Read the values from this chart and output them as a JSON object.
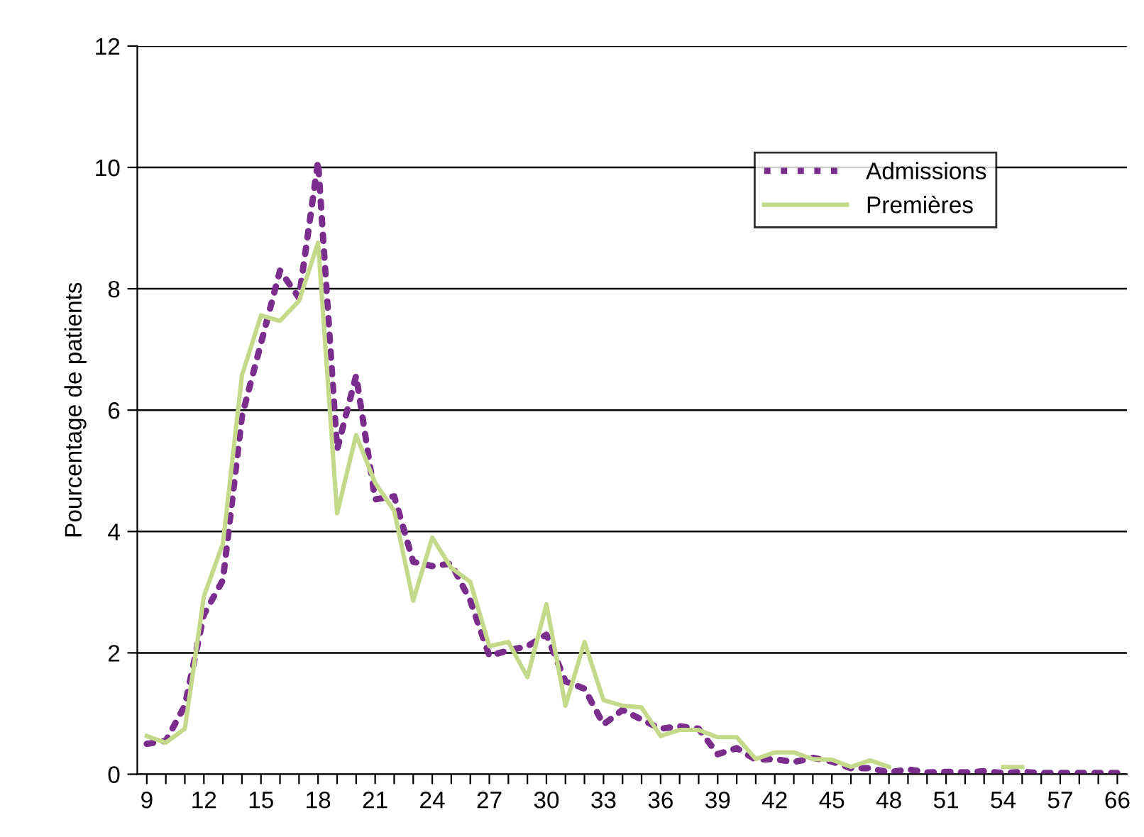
{
  "chart_data": {
    "type": "line",
    "ylabel": "Pourcentage de patients",
    "categories": [
      "9",
      null,
      null,
      "12",
      null,
      null,
      "15",
      null,
      null,
      "18",
      null,
      null,
      "21",
      null,
      null,
      "24",
      null,
      null,
      "27",
      null,
      null,
      "30",
      null,
      null,
      "33",
      null,
      null,
      "36",
      null,
      null,
      "39",
      null,
      null,
      "42",
      null,
      null,
      "45",
      null,
      null,
      "48",
      null,
      null,
      "51",
      null,
      null,
      "54",
      null,
      null,
      "57",
      null,
      null,
      "66"
    ],
    "series": [
      {
        "name": "Admissions",
        "color": "#7b2d8e",
        "line_style": "dotted",
        "values": [
          0.5,
          0.55,
          1.13,
          2.63,
          3.2,
          5.9,
          7.1,
          8.3,
          7.85,
          10.1,
          5.35,
          6.57,
          4.53,
          4.58,
          3.5,
          3.43,
          3.47,
          2.86,
          1.95,
          2.04,
          2.11,
          2.3,
          1.53,
          1.41,
          0.82,
          1.06,
          0.9,
          0.75,
          0.79,
          0.75,
          0.33,
          0.43,
          0.24,
          0.25,
          0.2,
          0.27,
          0.21,
          0.1,
          0.1,
          0.03,
          0.08,
          0.03,
          0.04,
          0.03,
          0.05,
          0.02,
          0.04,
          0.02,
          0.02,
          0.02,
          0.02,
          0.02
        ]
      },
      {
        "name": "Premières",
        "color": "#c5d98a",
        "line_style": "solid",
        "values": [
          0.63,
          0.52,
          0.75,
          2.93,
          3.8,
          6.57,
          7.56,
          7.47,
          7.8,
          8.76,
          4.3,
          5.59,
          4.8,
          4.34,
          2.86,
          3.9,
          3.4,
          3.17,
          2.11,
          2.18,
          1.6,
          2.8,
          1.13,
          2.18,
          1.22,
          1.13,
          1.1,
          0.63,
          0.73,
          0.73,
          0.61,
          0.61,
          0.25,
          0.36,
          0.36,
          0.25,
          0.24,
          0.12,
          0.23,
          0.12,
          null,
          null,
          null,
          null,
          null,
          0.12,
          0.12,
          null,
          null,
          null,
          null,
          null
        ]
      }
    ],
    "ylim": [
      0,
      12
    ],
    "yticks": [
      0,
      2,
      4,
      6,
      8,
      10,
      12
    ],
    "grid": "y",
    "legend": "top right",
    "marker": "none"
  }
}
